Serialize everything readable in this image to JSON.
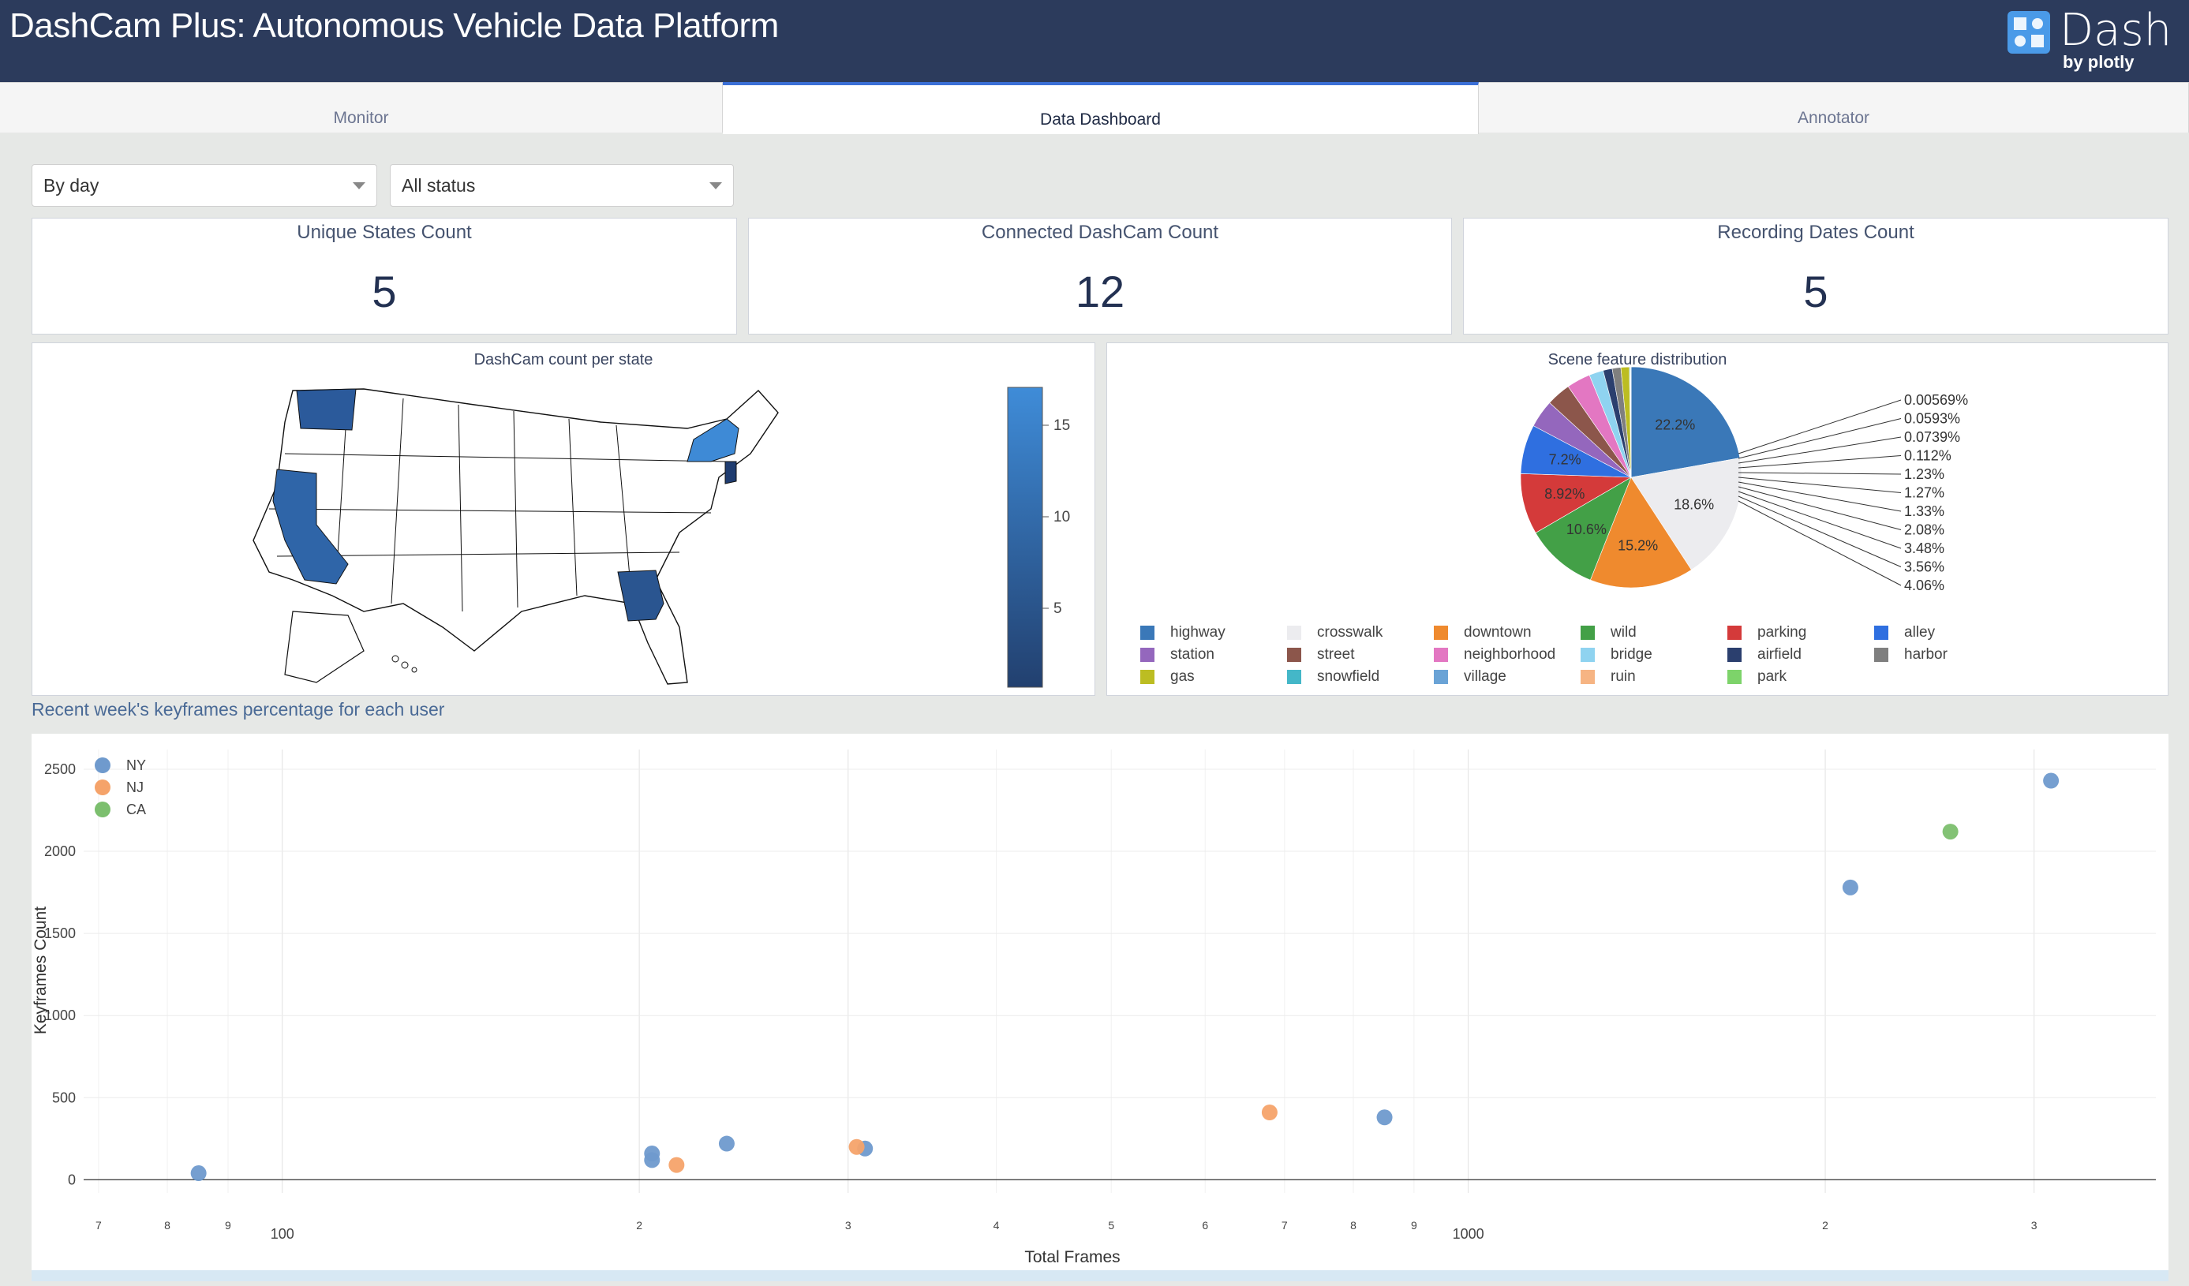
{
  "header": {
    "title": "DashCam Plus: Autonomous Vehicle Data Platform",
    "brand_name": "Dash",
    "brand_sub": "by plotly"
  },
  "tabs": [
    {
      "label": "Monitor",
      "active": false
    },
    {
      "label": "Data Dashboard",
      "active": true
    },
    {
      "label": "Annotator",
      "active": false
    }
  ],
  "filters": {
    "period": "By day",
    "status": "All status"
  },
  "stats": [
    {
      "label": "Unique States Count",
      "value": "5"
    },
    {
      "label": "Connected DashCam Count",
      "value": "12"
    },
    {
      "label": "Recording Dates Count",
      "value": "5"
    }
  ],
  "map_panel": {
    "title": "DashCam count per state",
    "colorbar_ticks": [
      "15",
      "10",
      "5"
    ]
  },
  "pie_panel": {
    "title": "Scene feature distribution"
  },
  "section_label": "Recent week's keyframes percentage for each user",
  "chart_data": [
    {
      "type": "pie",
      "title": "Scene feature distribution",
      "categories": [
        "highway",
        "crosswalk",
        "downtown",
        "wild",
        "parking",
        "alley",
        "station",
        "street",
        "neighborhood",
        "bridge",
        "airfield",
        "harbor",
        "gas",
        "snowfield",
        "village",
        "ruin",
        "park"
      ],
      "values": [
        22.2,
        18.6,
        15.2,
        10.6,
        8.92,
        7.2,
        4.06,
        3.56,
        3.48,
        2.08,
        1.33,
        1.27,
        1.23,
        0.112,
        0.0739,
        0.0593,
        0.00569
      ],
      "slice_labels_inside": [
        "22.2%",
        "18.6%",
        "15.2%",
        "10.6%",
        "8.92%",
        "7.2%"
      ],
      "slice_labels_outside": [
        "0.00569%",
        "0.0593%",
        "0.0739%",
        "0.112%",
        "1.23%",
        "1.27%",
        "1.33%",
        "2.08%",
        "3.48%",
        "3.56%",
        "4.06%"
      ],
      "colors": [
        "#3a78b8",
        "#ececef",
        "#ef8a2e",
        "#43a047",
        "#d43a3a",
        "#2f6fe0",
        "#9467bd",
        "#8c564b",
        "#e377c2",
        "#8fd3f0",
        "#2b3f6e",
        "#7f7f7f",
        "#bcbd22",
        "#44b7c8",
        "#6aa3d6",
        "#f6b483",
        "#7dd36a"
      ],
      "legend": {
        "position": "bottom",
        "columns": 6
      }
    },
    {
      "type": "scatter",
      "title": "Recent week's keyframes percentage for each user",
      "xlabel": "Total Frames",
      "ylabel": "Keyframes Count",
      "x_scale": "log",
      "x_tick_labels": [
        "7",
        "8",
        "9",
        "100",
        "2",
        "3",
        "4",
        "5",
        "6",
        "7",
        "8",
        "9",
        "1000",
        "2",
        "3"
      ],
      "y_ticks": [
        0,
        500,
        1000,
        1500,
        2000,
        2500
      ],
      "ylim": [
        -80,
        2620
      ],
      "legend_position": "top-left",
      "series": [
        {
          "name": "NY",
          "color": "#6f9acd",
          "x": [
            85,
            205,
            205,
            237,
            310,
            850,
            2100,
            3100
          ],
          "y": [
            40,
            120,
            160,
            220,
            190,
            380,
            1780,
            2430
          ]
        },
        {
          "name": "NJ",
          "color": "#f5a36a",
          "x": [
            215,
            305,
            680
          ],
          "y": [
            90,
            200,
            410
          ]
        },
        {
          "name": "CA",
          "color": "#7cbf6e",
          "x": [
            2550
          ],
          "y": [
            2120
          ]
        }
      ]
    }
  ]
}
